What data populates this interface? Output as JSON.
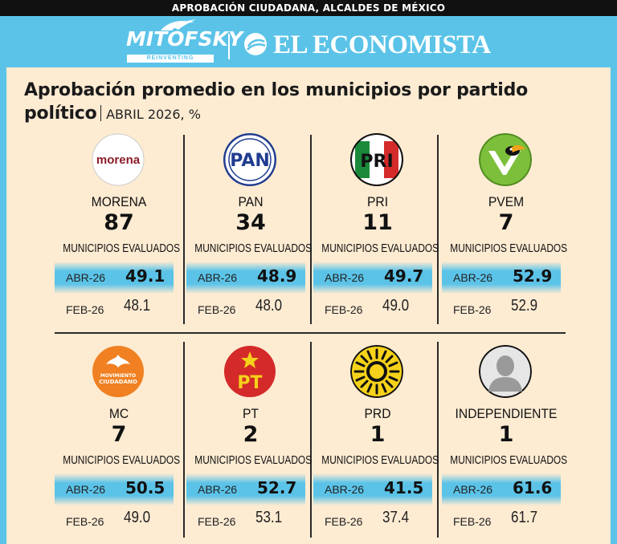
{
  "header": {
    "title": "APROBACIÓN CIUDADANA, ALCALDES DE MÉXICO",
    "brand1": "MITOFSKY",
    "brand1_sub": "REINVENTING RESEARCH",
    "brand2": "EL ECONOMISTA"
  },
  "colors": {
    "background": "#5bc3e8",
    "panel": "#fdebd2",
    "band": "#5bc3e8"
  },
  "chart_data": {
    "type": "table",
    "title": "Aprobación promedio en los municipios por partido político",
    "subtitle": "ABRIL 2026, %",
    "count_label": "MUNICIPIOS EVALUADOS",
    "period_current": "ABR-26",
    "period_previous": "FEB-26",
    "parties": [
      {
        "name": "MORENA",
        "logo": "morena-logo",
        "municipios": "87",
        "abr": "49.1",
        "feb": "48.1"
      },
      {
        "name": "PAN",
        "logo": "pan-logo",
        "municipios": "34",
        "abr": "48.9",
        "feb": "48.0"
      },
      {
        "name": "PRI",
        "logo": "pri-logo",
        "municipios": "11",
        "abr": "49.7",
        "feb": "49.0"
      },
      {
        "name": "PVEM",
        "logo": "pvem-logo",
        "municipios": "7",
        "abr": "52.9",
        "feb": "52.9"
      },
      {
        "name": "MC",
        "logo": "mc-logo",
        "municipios": "7",
        "abr": "50.5",
        "feb": "49.0"
      },
      {
        "name": "PT",
        "logo": "pt-logo",
        "municipios": "2",
        "abr": "52.7",
        "feb": "53.1"
      },
      {
        "name": "PRD",
        "logo": "prd-logo",
        "municipios": "1",
        "abr": "41.5",
        "feb": "37.4"
      },
      {
        "name": "INDEPENDIENTE",
        "logo": "silhouette-icon",
        "municipios": "1",
        "abr": "61.6",
        "feb": "61.7"
      }
    ]
  },
  "logos": {
    "morena_text": "morena",
    "pan_text": "PAN",
    "pri_text": "PRI",
    "mc_text_1": "MOVIMIENTO",
    "mc_text_2": "CIUDADANO",
    "pt_text": "PT"
  }
}
